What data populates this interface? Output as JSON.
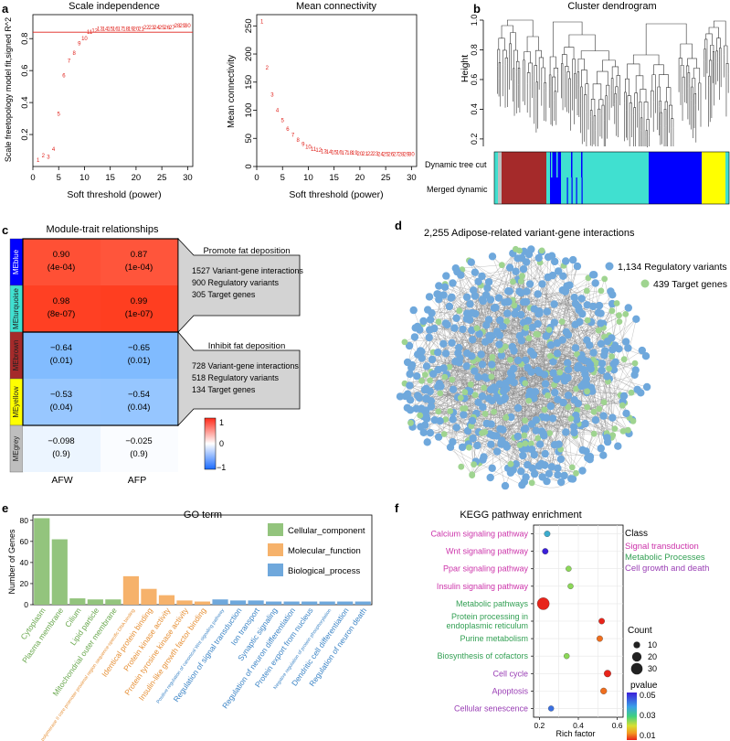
{
  "panels": {
    "a": "a",
    "b": "b",
    "c": "c",
    "d": "d",
    "e": "e",
    "f": "f"
  },
  "chart_data": [
    {
      "id": "scale-independence",
      "type": "scatter",
      "title": "Scale independence",
      "xlabel": "Soft threshold (power)",
      "ylabel": "Scale freetopology model fit,signed R^2",
      "xlim": [
        0,
        31
      ],
      "ylim": [
        0,
        0.95
      ],
      "xticks": [
        "0",
        "5",
        "10",
        "15",
        "20",
        "25",
        "30"
      ],
      "yticks": [
        "0.2",
        "0.4",
        "0.6",
        "0.8"
      ],
      "x": [
        1,
        2,
        3,
        4,
        5,
        6,
        7,
        8,
        9,
        10,
        11,
        12,
        13,
        14,
        15,
        16,
        17,
        18,
        19,
        20,
        21,
        22,
        23,
        24,
        25,
        26,
        27,
        28,
        29,
        30
      ],
      "y": [
        0.04,
        0.07,
        0.06,
        0.11,
        0.33,
        0.57,
        0.66,
        0.71,
        0.77,
        0.8,
        0.84,
        0.85,
        0.86,
        0.86,
        0.86,
        0.86,
        0.86,
        0.86,
        0.86,
        0.86,
        0.86,
        0.87,
        0.87,
        0.87,
        0.87,
        0.87,
        0.87,
        0.88,
        0.88,
        0.88
      ],
      "labels": [
        "1",
        "2",
        "3",
        "4",
        "5",
        "6",
        "7",
        "8",
        "9",
        "10",
        "11",
        "12",
        "13",
        "14",
        "15",
        "16",
        "17",
        "18",
        "19",
        "20",
        "21",
        "22",
        "23",
        "24",
        "25",
        "26",
        "27",
        "28",
        "29",
        "30"
      ],
      "hline": 0.84
    },
    {
      "id": "mean-connectivity",
      "type": "scatter",
      "title": "Mean connectivity",
      "xlabel": "Soft threshold (power)",
      "ylabel": "Mean connectivity",
      "xlim": [
        0,
        31
      ],
      "ylim": [
        0,
        270
      ],
      "xticks": [
        "0",
        "5",
        "10",
        "15",
        "20",
        "25",
        "30"
      ],
      "yticks": [
        "0",
        "50",
        "100",
        "150",
        "200",
        "250"
      ],
      "x": [
        1,
        2,
        3,
        4,
        5,
        6,
        7,
        8,
        9,
        10,
        11,
        12,
        13,
        14,
        15,
        16,
        17,
        18,
        19,
        20,
        21,
        22,
        23,
        24,
        25,
        26,
        27,
        28,
        29,
        30
      ],
      "y": [
        258,
        176,
        128,
        100,
        82,
        67,
        56,
        47,
        40,
        35,
        31,
        29,
        27,
        26,
        25,
        25,
        24,
        24,
        24,
        23,
        23,
        23,
        23,
        22,
        22,
        22,
        22,
        22,
        22,
        22
      ],
      "labels": [
        "1",
        "2",
        "3",
        "4",
        "5",
        "6",
        "7",
        "8",
        "9",
        "10",
        "11",
        "12",
        "13",
        "14",
        "15",
        "16",
        "17",
        "18",
        "19",
        "20",
        "21",
        "22",
        "23",
        "24",
        "25",
        "26",
        "27",
        "28",
        "29",
        "30"
      ]
    },
    {
      "id": "cluster-dendrogram",
      "type": "dendrogram",
      "title": "Cluster dendrogram",
      "ylabel": "Height",
      "yticks": [
        "0.2",
        "0.4",
        "0.6",
        "0.8",
        "1.0"
      ],
      "rows": [
        "Dynamic tree cut",
        "Merged dynamic"
      ],
      "module_colors": {
        "turquoise": "#40e0d0",
        "blue": "#0000ff",
        "brown": "#a52a2a",
        "yellow": "#ffff00",
        "grey": "#bebebe"
      }
    },
    {
      "id": "module-trait",
      "type": "heatmap",
      "title": "Module-trait relationships",
      "columns": [
        "AFW",
        "AFP"
      ],
      "rows": [
        {
          "module": "MEblue",
          "color": "#0000ff",
          "cells": [
            {
              "r": 0.9,
              "p": "(4e-04)",
              "label": "0.90"
            },
            {
              "r": 0.87,
              "p": "(1e-04)",
              "label": "0.87"
            }
          ]
        },
        {
          "module": "MEturquoise",
          "color": "#40e0d0",
          "cells": [
            {
              "r": 0.98,
              "p": "(8e-07)",
              "label": "0.98"
            },
            {
              "r": 0.99,
              "p": "(1e-07)",
              "label": "0.99"
            }
          ]
        },
        {
          "module": "MEbrown",
          "color": "#a52a2a",
          "cells": [
            {
              "r": -0.64,
              "p": "(0.01)",
              "label": "−0.64"
            },
            {
              "r": -0.65,
              "p": "(0.01)",
              "label": "−0.65"
            }
          ]
        },
        {
          "module": "MEyellow",
          "color": "#ffff00",
          "cells": [
            {
              "r": -0.53,
              "p": "(0.04)",
              "label": "−0.53"
            },
            {
              "r": -0.54,
              "p": "(0.04)",
              "label": "−0.54"
            }
          ]
        },
        {
          "module": "MEgrey",
          "color": "#bebebe",
          "cells": [
            {
              "r": -0.098,
              "p": "(0.9)",
              "label": "−0.098"
            },
            {
              "r": -0.025,
              "p": "(0.9)",
              "label": "−0.025"
            }
          ]
        }
      ],
      "colorbar": {
        "ticks": [
          "1",
          "0",
          "−1"
        ]
      },
      "callouts": [
        {
          "title": "Promote fat deposition",
          "lines": [
            "1527 Variant-gene interactions",
            "900 Regulatory variants",
            "305 Target genes"
          ]
        },
        {
          "title": "Inhibit fat deposition",
          "lines": [
            "728 Variant-gene interactions",
            "518 Regulatory variants",
            "134 Target genes"
          ]
        }
      ]
    },
    {
      "id": "network",
      "type": "network",
      "title": "2,255 Adipose-related variant-gene interactions",
      "legend": [
        {
          "label": "1,134 Regulatory variants",
          "color": "#6fa8dc",
          "count": 1134
        },
        {
          "label": "439 Target genes",
          "color": "#9fd490",
          "count": 439
        }
      ]
    },
    {
      "id": "go-term",
      "type": "bar",
      "title": "GO term",
      "ylabel": "Number of Genes",
      "ylim": [
        0,
        85
      ],
      "yticks": [
        "0",
        "20",
        "40",
        "60",
        "80"
      ],
      "legend": [
        {
          "name": "Cellular_component",
          "color": "#93c47d",
          "label_color": "#6aa84f"
        },
        {
          "name": "Molecular_function",
          "color": "#f6b26b",
          "label_color": "#e69138"
        },
        {
          "name": "Biological_process",
          "color": "#6fa8dc",
          "label_color": "#3d85c6"
        }
      ],
      "categories": [
        {
          "label": "Cytoplasm",
          "value": 82,
          "class": 0
        },
        {
          "label": "Plasma membrane",
          "value": 62,
          "class": 0
        },
        {
          "label": "Cilium",
          "value": 6,
          "class": 0
        },
        {
          "label": "Lipid particle",
          "value": 5,
          "class": 0
        },
        {
          "label": "Mitochondrial outer membrane",
          "value": 5,
          "class": 0
        },
        {
          "label": "RNA polymerase II core promoter proximal region sequence-specific DNA binding",
          "value": 27,
          "class": 1
        },
        {
          "label": "Identical protein binding",
          "value": 15,
          "class": 1
        },
        {
          "label": "Protein kinase activity",
          "value": 9,
          "class": 1
        },
        {
          "label": "Protein tyrosine kinase activity",
          "value": 4,
          "class": 1
        },
        {
          "label": "Insulin-like growth factor binding",
          "value": 3,
          "class": 1
        },
        {
          "label": "Positive regulation of canonical Wnt signaling pathway",
          "value": 5,
          "class": 2
        },
        {
          "label": "Regulation of signal transduction",
          "value": 4,
          "class": 2
        },
        {
          "label": "Ion transport",
          "value": 4,
          "class": 2
        },
        {
          "label": "Synaptic signaling",
          "value": 3,
          "class": 2
        },
        {
          "label": "Regulation of neuron differentiation",
          "value": 3,
          "class": 2
        },
        {
          "label": "Protein export from nucleus",
          "value": 3,
          "class": 2
        },
        {
          "label": "Negative regulation of protein phosphorylation",
          "value": 3,
          "class": 2
        },
        {
          "label": "Dendritic cell differentiation",
          "value": 3,
          "class": 2
        },
        {
          "label": "Regulation of neuron death",
          "value": 3,
          "class": 2
        }
      ]
    },
    {
      "id": "kegg",
      "type": "scatter",
      "title": "KEGG pathway enrichment",
      "xlabel": "Rich factor",
      "xlim": [
        0.17,
        0.63
      ],
      "xticks": [
        {
          "v": 0.2,
          "t": "0.2"
        },
        {
          "v": 0.4,
          "t": "0.4"
        },
        {
          "v": 0.6,
          "t": "0.6"
        }
      ],
      "class_title": "Class",
      "classes": [
        {
          "name": "Signal transduction",
          "color": "#cc33aa"
        },
        {
          "name": "Metabolic Processes",
          "color": "#33a054"
        },
        {
          "name": "Cell growth and death",
          "color": "#9a3fb5"
        }
      ],
      "pathways": [
        {
          "name": "Calcium signaling pathway",
          "class": 0,
          "rich": 0.24,
          "count": 8,
          "p": 0.04
        },
        {
          "name": "Wnt signaling pathway",
          "class": 0,
          "rich": 0.23,
          "count": 8,
          "p": 0.05
        },
        {
          "name": "Ppar signaling pathway",
          "class": 0,
          "rich": 0.35,
          "count": 7,
          "p": 0.03
        },
        {
          "name": "Insulin signaling pathway",
          "class": 0,
          "rich": 0.36,
          "count": 7,
          "p": 0.03
        },
        {
          "name": "Metabolic pathways",
          "class": 1,
          "rich": 0.22,
          "count": 33,
          "p": 0.01
        },
        {
          "name": "Protein processing in endoplasmic reticulum",
          "class": 1,
          "rich": 0.52,
          "count": 8,
          "p": 0.01
        },
        {
          "name": "Purine metabolism",
          "class": 1,
          "rich": 0.51,
          "count": 8,
          "p": 0.015
        },
        {
          "name": "Biosynthesis of cofactors",
          "class": 1,
          "rich": 0.34,
          "count": 7,
          "p": 0.03
        },
        {
          "name": "Cell cycle",
          "class": 2,
          "rich": 0.55,
          "count": 11,
          "p": 0.01
        },
        {
          "name": "Apoptosis",
          "class": 2,
          "rich": 0.53,
          "count": 9,
          "p": 0.015
        },
        {
          "name": "Cellular senescence",
          "class": 2,
          "rich": 0.26,
          "count": 7,
          "p": 0.045
        }
      ],
      "size_legend": {
        "title": "Count",
        "values": [
          "10",
          "20",
          "30"
        ]
      },
      "color_legend": {
        "title": "pvalue",
        "ticks": [
          "0.05",
          "0.03",
          "0.01"
        ]
      }
    }
  ]
}
